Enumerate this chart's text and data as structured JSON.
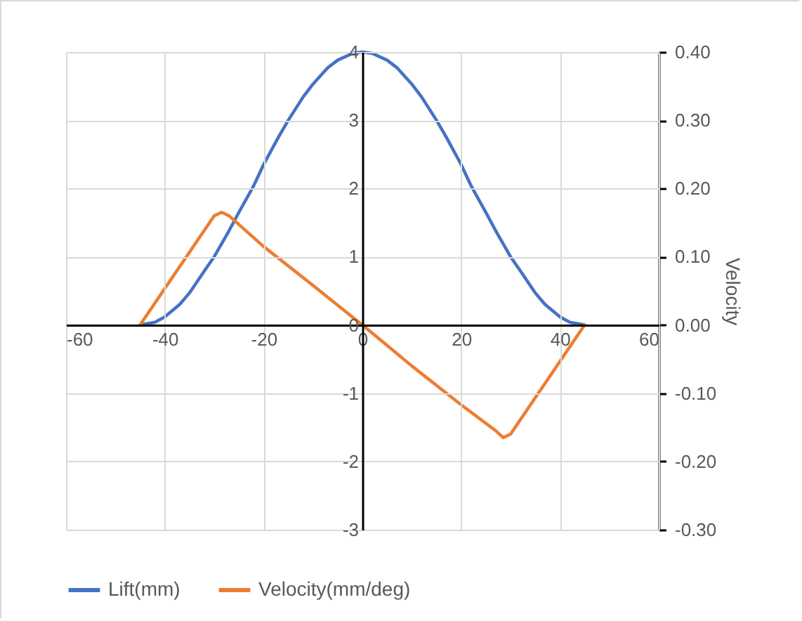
{
  "chart_data": {
    "type": "line",
    "y2label": "Velocity",
    "series": [
      {
        "name": "Lift(mm)",
        "color": "#4472c4",
        "x": [
          -45,
          -42,
          -40,
          -37,
          -35,
          -32,
          -30,
          -27,
          -25,
          -22,
          -20,
          -17,
          -15,
          -12,
          -10,
          -7,
          -5,
          -2,
          0,
          2,
          5,
          7,
          10,
          12,
          15,
          17,
          20,
          22,
          25,
          27,
          30,
          32,
          35,
          37,
          40,
          42,
          45
        ],
        "values": [
          0,
          0.04,
          0.12,
          0.3,
          0.47,
          0.79,
          1.0,
          1.38,
          1.65,
          2.04,
          2.35,
          2.75,
          3.0,
          3.34,
          3.53,
          3.77,
          3.88,
          3.98,
          4.0,
          3.98,
          3.88,
          3.77,
          3.53,
          3.34,
          3.0,
          2.75,
          2.35,
          2.04,
          1.65,
          1.38,
          1.0,
          0.79,
          0.47,
          0.3,
          0.12,
          0.04,
          0
        ]
      },
      {
        "name": "Velocity(mm/deg)",
        "color": "#ed7d31",
        "axis": "y2",
        "x": [
          -45,
          -30,
          -28.5,
          -27,
          -20,
          -10,
          0,
          10,
          20,
          27,
          28.5,
          30,
          45
        ],
        "values": [
          0,
          0.16,
          0.165,
          0.16,
          0.115,
          0.058,
          0,
          -0.06,
          -0.117,
          -0.155,
          -0.165,
          -0.16,
          0
        ]
      }
    ],
    "xlim": [
      -60,
      60
    ],
    "xticks": [
      -60,
      -40,
      -20,
      0,
      20,
      40,
      60
    ],
    "ylim": [
      -3,
      4
    ],
    "yticks": [
      -3,
      -2,
      -1,
      0,
      1,
      2,
      3,
      4
    ],
    "y2lim": [
      -0.3,
      0.4
    ],
    "y2ticks": [
      {
        "value": -0.3,
        "label": "-0.30"
      },
      {
        "value": -0.2,
        "label": "-0.20"
      },
      {
        "value": -0.1,
        "label": "-0.10"
      },
      {
        "value": 0,
        "label": "0.00"
      },
      {
        "value": 0.1,
        "label": "0.10"
      },
      {
        "value": 0.2,
        "label": "0.20"
      },
      {
        "value": 0.3,
        "label": "0.30"
      },
      {
        "value": 0.4,
        "label": "0.40"
      }
    ],
    "grid": true,
    "legend": "bottom",
    "line_style": "solid",
    "marker": "none"
  }
}
